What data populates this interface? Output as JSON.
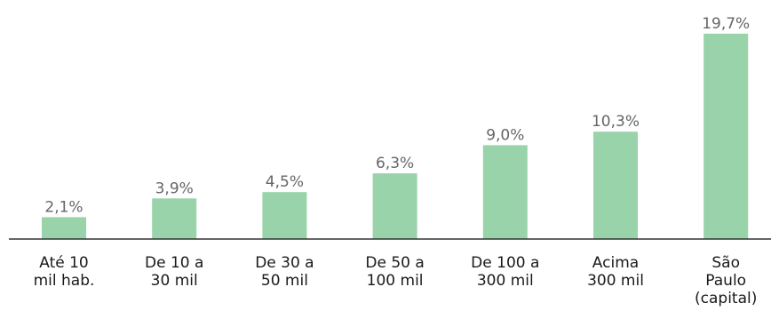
{
  "chart_data": {
    "type": "bar",
    "title": "",
    "xlabel": "",
    "ylabel": "",
    "ylim": [
      0,
      20
    ],
    "grid": false,
    "legend": "none",
    "categories": [
      [
        "Até 10",
        "mil hab."
      ],
      [
        "De 10 a",
        "30 mil"
      ],
      [
        "De 30 a",
        "50 mil"
      ],
      [
        "De 50 a",
        "100 mil"
      ],
      [
        "De 100 a",
        "300 mil"
      ],
      [
        "Acima",
        "300 mil"
      ],
      [
        "São",
        "Paulo",
        "(capital)"
      ]
    ],
    "values": [
      2.1,
      3.9,
      4.5,
      6.3,
      9.0,
      10.3,
      19.7
    ],
    "value_labels": [
      "2,1%",
      "3,9%",
      "4,5%",
      "6,3%",
      "9,0%",
      "10,3%",
      "19,7%"
    ],
    "colors": {
      "bar": "#99d3aa",
      "axis": "#333333",
      "value_text": "#666666",
      "category_text": "#1a1a1a"
    }
  }
}
